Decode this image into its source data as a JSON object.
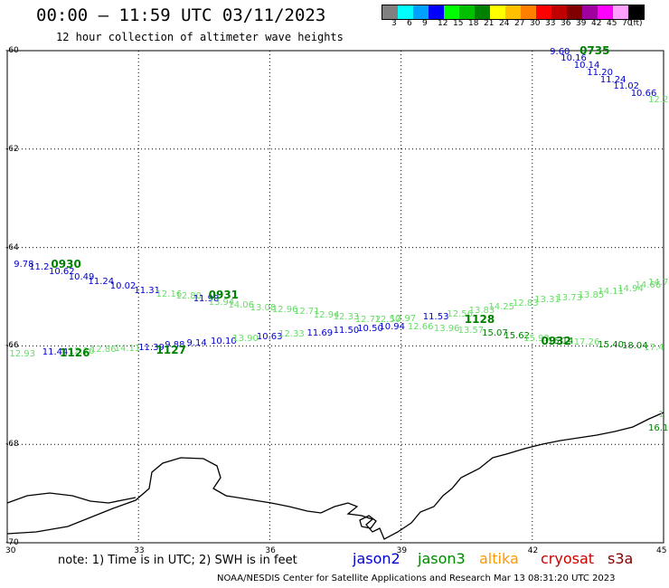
{
  "header": {
    "title": "00:00 – 11:59 UTC 03/11/2023",
    "subtitle": "12 hour collection of altimeter wave heights"
  },
  "scale": {
    "colors": [
      "#808080",
      "#00ffff",
      "#00a0ff",
      "#0000ff",
      "#00ff00",
      "#00c000",
      "#008000",
      "#ffff00",
      "#ffc000",
      "#ff8000",
      "#ff0000",
      "#c00000",
      "#800000",
      "#a000a0",
      "#ff00ff",
      "#ffa0ff",
      "#000000"
    ],
    "labels": [
      "3",
      "6",
      "9",
      "12",
      "15",
      "18",
      "21",
      "24",
      "27",
      "30",
      "33",
      "36",
      "39",
      "42",
      "45",
      "70",
      "(ft)"
    ]
  },
  "axes": {
    "lat_ticks": [
      "-60",
      "-62",
      "-64",
      "-66",
      "-68",
      "-70"
    ],
    "lon_ticks": [
      "30",
      "33",
      "36",
      "39",
      "42",
      "45"
    ]
  },
  "footer": {
    "note": "note: 1) Time is in UTC; 2) SWH is in feet",
    "missions": [
      {
        "name": "jason2",
        "color": "#0000cc"
      },
      {
        "name": "jason3",
        "color": "#008800"
      },
      {
        "name": "altika",
        "color": "#ff9900"
      },
      {
        "name": "cryosat",
        "color": "#cc0000"
      },
      {
        "name": "s3a",
        "color": "#800000"
      }
    ],
    "credit": "NOAA/NESDIS Center for Satellite Applications and Research    Mar 13 08:31:20 UTC 2023"
  },
  "pass_times": [
    {
      "label": "0735",
      "lon": 43.08,
      "lat": -60.01
    },
    {
      "label": "0930",
      "lon": 31.0,
      "lat": -64.35
    },
    {
      "label": "0931",
      "lon": 34.6,
      "lat": -64.98
    },
    {
      "label": "1128",
      "lon": 40.45,
      "lat": -65.48
    },
    {
      "label": "1126",
      "lon": 31.2,
      "lat": -66.16
    },
    {
      "label": "1127",
      "lon": 33.4,
      "lat": -66.1
    },
    {
      "label": "0932",
      "lon": 42.2,
      "lat": -65.92
    }
  ],
  "observations": [
    {
      "v": "9.60",
      "lon": 42.4,
      "lat": -60.04,
      "c": "#0000cc"
    },
    {
      "v": "10.16",
      "lon": 42.65,
      "lat": -60.17,
      "c": "#0000cc"
    },
    {
      "v": "10.14",
      "lon": 42.95,
      "lat": -60.32,
      "c": "#0000cc"
    },
    {
      "v": "11.20",
      "lon": 43.25,
      "lat": -60.46,
      "c": "#0000cc"
    },
    {
      "v": "11.24",
      "lon": 43.55,
      "lat": -60.6,
      "c": "#0000cc"
    },
    {
      "v": "11.02",
      "lon": 43.85,
      "lat": -60.74,
      "c": "#0000cc"
    },
    {
      "v": "10.66",
      "lon": 44.25,
      "lat": -60.89,
      "c": "#0000cc"
    },
    {
      "v": "12.2",
      "lon": 44.65,
      "lat": -61.02,
      "c": "#66dd66"
    },
    {
      "v": "9.78",
      "lon": 30.15,
      "lat": -64.35,
      "c": "#0000cc"
    },
    {
      "v": "11.2",
      "lon": 30.5,
      "lat": -64.42,
      "c": "#0000cc"
    },
    {
      "v": "10.62",
      "lon": 30.95,
      "lat": -64.5,
      "c": "#0000cc"
    },
    {
      "v": "10.49",
      "lon": 31.4,
      "lat": -64.61,
      "c": "#0000cc"
    },
    {
      "v": "11.24",
      "lon": 31.85,
      "lat": -64.7,
      "c": "#0000cc"
    },
    {
      "v": "10.02",
      "lon": 32.35,
      "lat": -64.8,
      "c": "#0000cc"
    },
    {
      "v": "11.31",
      "lon": 32.9,
      "lat": -64.89,
      "c": "#0000cc"
    },
    {
      "v": "12.16",
      "lon": 33.4,
      "lat": -64.96,
      "c": "#66dd66"
    },
    {
      "v": "12.80",
      "lon": 33.85,
      "lat": -65.0,
      "c": "#66dd66"
    },
    {
      "v": "11.98",
      "lon": 34.25,
      "lat": -65.06,
      "c": "#0000cc"
    },
    {
      "v": "13.94",
      "lon": 34.6,
      "lat": -65.12,
      "c": "#66dd66"
    },
    {
      "v": "14.06",
      "lon": 35.05,
      "lat": -65.18,
      "c": "#66dd66"
    },
    {
      "v": "13.08",
      "lon": 35.55,
      "lat": -65.23,
      "c": "#66dd66"
    },
    {
      "v": "12.96",
      "lon": 36.05,
      "lat": -65.28,
      "c": "#66dd66"
    },
    {
      "v": "12.71",
      "lon": 36.55,
      "lat": -65.32,
      "c": "#66dd66"
    },
    {
      "v": "12.94",
      "lon": 37.0,
      "lat": -65.38,
      "c": "#66dd66"
    },
    {
      "v": "12.33",
      "lon": 37.45,
      "lat": -65.42,
      "c": "#66dd66"
    },
    {
      "v": "12.72",
      "lon": 37.95,
      "lat": -65.47,
      "c": "#66dd66"
    },
    {
      "v": "12.50",
      "lon": 38.4,
      "lat": -65.47,
      "c": "#66dd66"
    },
    {
      "v": "12.97",
      "lon": 38.75,
      "lat": -65.46,
      "c": "#66dd66"
    },
    {
      "v": "11.53",
      "lon": 39.5,
      "lat": -65.43,
      "c": "#0000cc"
    },
    {
      "v": "12.56",
      "lon": 40.05,
      "lat": -65.37,
      "c": "#66dd66"
    },
    {
      "v": "13.83",
      "lon": 40.55,
      "lat": -65.3,
      "c": "#66dd66"
    },
    {
      "v": "14.25",
      "lon": 41.0,
      "lat": -65.22,
      "c": "#66dd66"
    },
    {
      "v": "12.83",
      "lon": 41.55,
      "lat": -65.15,
      "c": "#66dd66"
    },
    {
      "v": "13.31",
      "lon": 42.05,
      "lat": -65.08,
      "c": "#66dd66"
    },
    {
      "v": "13.73",
      "lon": 42.55,
      "lat": -65.03,
      "c": "#66dd66"
    },
    {
      "v": "13.85",
      "lon": 43.05,
      "lat": -64.99,
      "c": "#66dd66"
    },
    {
      "v": "14.11",
      "lon": 43.5,
      "lat": -64.9,
      "c": "#66dd66"
    },
    {
      "v": "14.94",
      "lon": 43.95,
      "lat": -64.86,
      "c": "#66dd66"
    },
    {
      "v": "14.66",
      "lon": 44.35,
      "lat": -64.78,
      "c": "#66dd66"
    },
    {
      "v": "14.7",
      "lon": 44.65,
      "lat": -64.72,
      "c": "#66dd66"
    },
    {
      "v": "12.93",
      "lon": 30.05,
      "lat": -66.17,
      "c": "#66dd66"
    },
    {
      "v": "11.44",
      "lon": 30.8,
      "lat": -66.14,
      "c": "#0000cc"
    },
    {
      "v": "12.26",
      "lon": 31.4,
      "lat": -66.12,
      "c": "#66dd66"
    },
    {
      "v": "12.86",
      "lon": 31.9,
      "lat": -66.09,
      "c": "#66dd66"
    },
    {
      "v": "14.11",
      "lon": 32.45,
      "lat": -66.06,
      "c": "#66dd66"
    },
    {
      "v": "11.39",
      "lon": 33.0,
      "lat": -66.04,
      "c": "#0000cc"
    },
    {
      "v": "9.88",
      "lon": 33.6,
      "lat": -66.0,
      "c": "#0000cc"
    },
    {
      "v": "9.14",
      "lon": 34.1,
      "lat": -65.96,
      "c": "#0000cc"
    },
    {
      "v": "10.10",
      "lon": 34.65,
      "lat": -65.92,
      "c": "#0000cc"
    },
    {
      "v": "13.90",
      "lon": 35.15,
      "lat": -65.87,
      "c": "#66dd66"
    },
    {
      "v": "10.63",
      "lon": 35.7,
      "lat": -65.83,
      "c": "#0000cc"
    },
    {
      "v": "12.33",
      "lon": 36.2,
      "lat": -65.78,
      "c": "#66dd66"
    },
    {
      "v": "11.69",
      "lon": 36.85,
      "lat": -65.75,
      "c": "#0000cc"
    },
    {
      "v": "11.50",
      "lon": 37.45,
      "lat": -65.69,
      "c": "#0000cc"
    },
    {
      "v": "10.50",
      "lon": 38.0,
      "lat": -65.66,
      "c": "#0000cc"
    },
    {
      "v": "10.94",
      "lon": 38.5,
      "lat": -65.62,
      "c": "#0000cc"
    },
    {
      "v": "12.66",
      "lon": 39.15,
      "lat": -65.62,
      "c": "#66dd66"
    },
    {
      "v": "13.96",
      "lon": 39.75,
      "lat": -65.66,
      "c": "#66dd66"
    },
    {
      "v": "13.57",
      "lon": 40.3,
      "lat": -65.7,
      "c": "#66dd66"
    },
    {
      "v": "15.07",
      "lon": 40.85,
      "lat": -65.76,
      "c": "#008000"
    },
    {
      "v": "15.62",
      "lon": 41.35,
      "lat": -65.81,
      "c": "#008000"
    },
    {
      "v": "15.93",
      "lon": 41.8,
      "lat": -65.86,
      "c": "#66dd66"
    },
    {
      "v": "16.14",
      "lon": 42.35,
      "lat": -65.91,
      "c": "#008000"
    },
    {
      "v": "17.26",
      "lon": 42.95,
      "lat": -65.94,
      "c": "#66dd66"
    },
    {
      "v": "15.40",
      "lon": 43.5,
      "lat": -65.99,
      "c": "#008000"
    },
    {
      "v": "18.04",
      "lon": 44.05,
      "lat": -66.02,
      "c": "#008000"
    },
    {
      "v": "17.4",
      "lon": 44.55,
      "lat": -66.04,
      "c": "#66dd66"
    },
    {
      "v": "1",
      "lon": 44.88,
      "lat": -67.41,
      "c": "#66dd66"
    },
    {
      "v": "16.1",
      "lon": 44.65,
      "lat": -67.68,
      "c": "#008000"
    }
  ]
}
